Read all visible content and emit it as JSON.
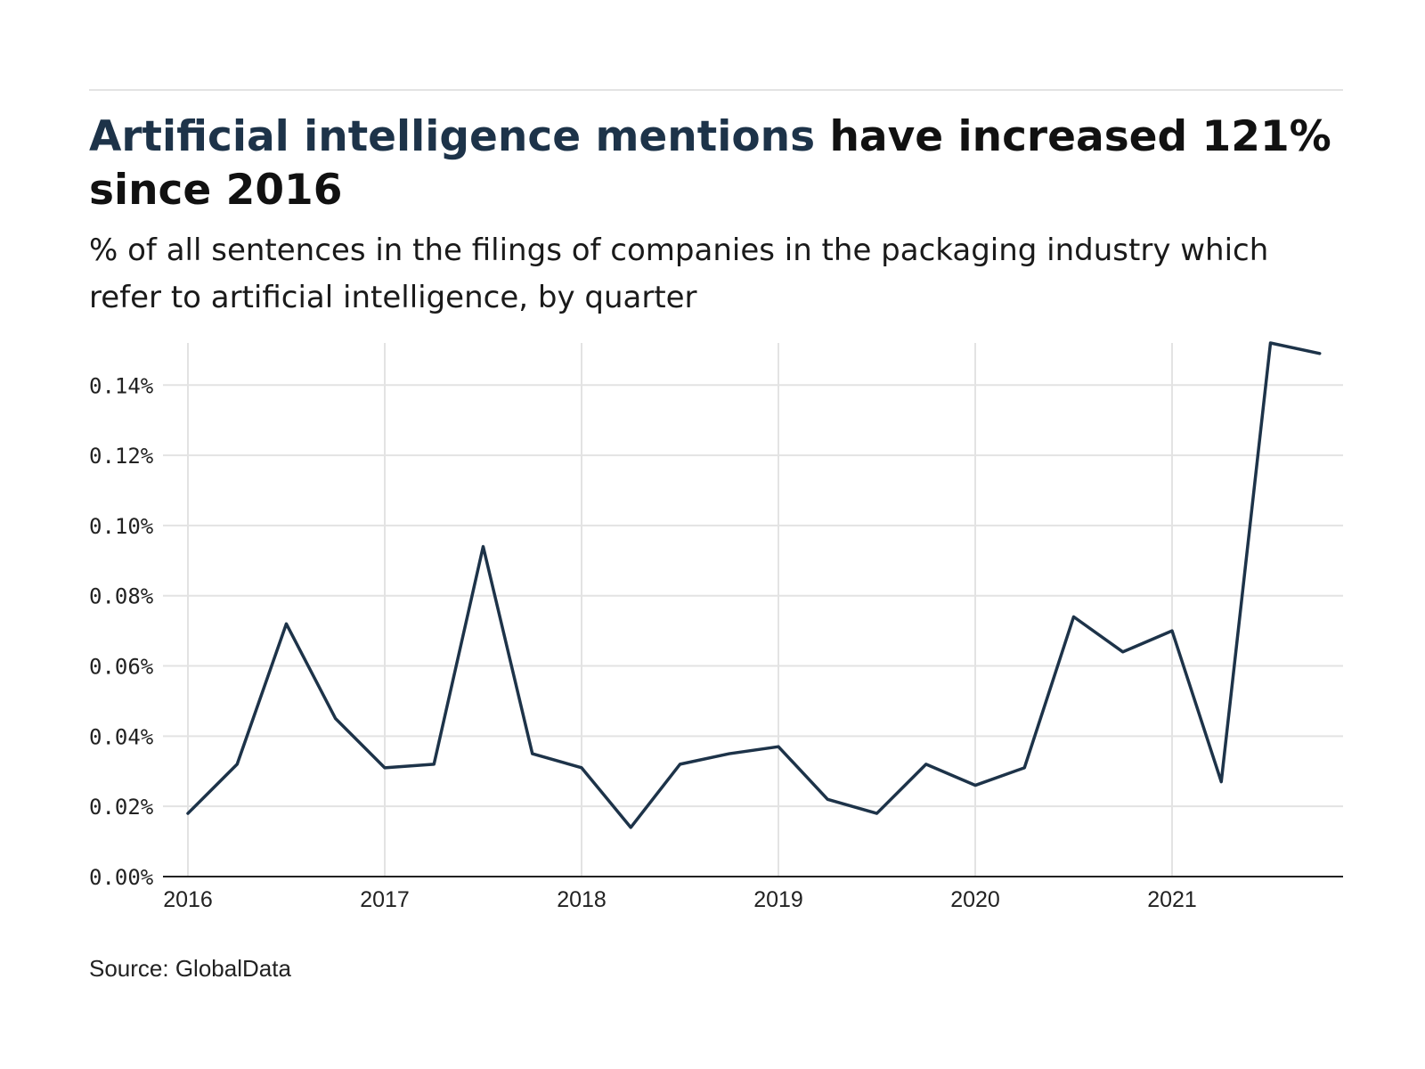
{
  "title": {
    "highlight": "Artificial intelligence mentions",
    "rest": " have increased 121% since 2016"
  },
  "subtitle": "% of all sentences in the filings of companies in the packaging industry which refer to artificial intelligence, by quarter",
  "source": "Source: GlobalData",
  "colors": {
    "line": "#1d3349",
    "highlight": "#1d3349",
    "grid": "#e3e3e3"
  },
  "chart_data": {
    "type": "line",
    "title": "Artificial intelligence mentions have increased 121% since 2016",
    "xlabel": "",
    "ylabel": "",
    "grid": true,
    "x_ticks": [
      "2016",
      "2017",
      "2018",
      "2019",
      "2020",
      "2021"
    ],
    "y_ticks": [
      "0.00%",
      "0.02%",
      "0.04%",
      "0.06%",
      "0.08%",
      "0.10%",
      "0.12%",
      "0.14%"
    ],
    "ylim": [
      0,
      0.152
    ],
    "x": [
      "2016 Q1",
      "2016 Q2",
      "2016 Q3",
      "2016 Q4",
      "2017 Q1",
      "2017 Q2",
      "2017 Q3",
      "2017 Q4",
      "2018 Q1",
      "2018 Q2",
      "2018 Q3",
      "2018 Q4",
      "2019 Q1",
      "2019 Q2",
      "2019 Q3",
      "2019 Q4",
      "2020 Q1",
      "2020 Q2",
      "2020 Q3",
      "2020 Q4",
      "2021 Q1",
      "2021 Q2",
      "2021 Q3",
      "2021 Q4"
    ],
    "series": [
      {
        "values": [
          0.018,
          0.032,
          0.072,
          0.045,
          0.031,
          0.032,
          0.094,
          0.035,
          0.031,
          0.014,
          0.032,
          0.035,
          0.037,
          0.022,
          0.018,
          0.032,
          0.026,
          0.031,
          0.074,
          0.064,
          0.07,
          0.027,
          0.152,
          0.149
        ]
      }
    ]
  }
}
